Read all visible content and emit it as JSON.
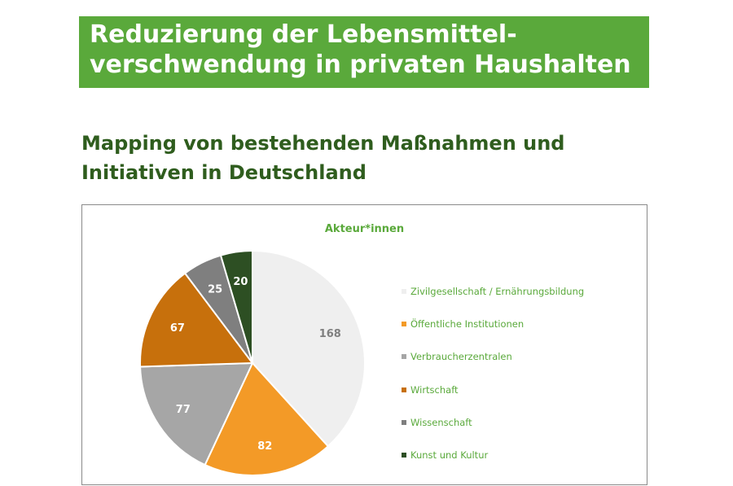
{
  "header": {
    "title_line1": "Reduzierung der Lebensmittel-",
    "title_line2": "verschwendung in privaten Haushalten",
    "banner_color": "#5aa93b"
  },
  "subtitle": {
    "line1": "Mapping von bestehenden Maßnahmen und",
    "line2": "Initiativen in Deutschland"
  },
  "chart_data": {
    "type": "pie",
    "title": "Akteur*innen",
    "legend_position": "right",
    "start_angle_deg": 0,
    "direction": "clockwise",
    "slices": [
      {
        "label": "Zivilgesellschaft / Ernährungsbildung",
        "value": 168,
        "color": "#efefef",
        "text_color": "#7f7f7f"
      },
      {
        "label": "Öffentliche Institutionen",
        "value": 82,
        "color": "#f39a27",
        "text_color": "#ffffff"
      },
      {
        "label": "Verbraucherzentralen",
        "value": 77,
        "color": "#a6a6a6",
        "text_color": "#ffffff"
      },
      {
        "label": "Wirtschaft",
        "value": 67,
        "color": "#c7700c",
        "text_color": "#ffffff"
      },
      {
        "label": "Wissenschaft",
        "value": 25,
        "color": "#7f7f7f",
        "text_color": "#ffffff"
      },
      {
        "label": "Kunst und Kultur",
        "value": 20,
        "color": "#2d4f23",
        "text_color": "#ffffff"
      }
    ]
  }
}
